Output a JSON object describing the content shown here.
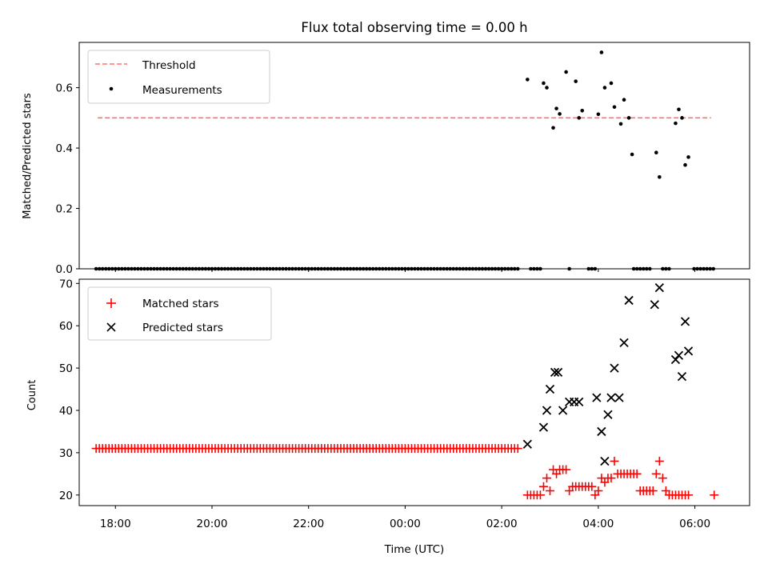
{
  "figure": {
    "title": "Flux total observing time = 0.00 h"
  },
  "chart_data": [
    {
      "type": "scatter",
      "ylabel": "Matched/Predicted stars",
      "ylim": [
        0,
        0.75
      ],
      "yticks": [
        0.0,
        0.2,
        0.4,
        0.6
      ],
      "ytick_labels": [
        "0.0",
        "0.2",
        "0.4",
        "0.6"
      ],
      "xlim": [
        "17:15",
        "07:08"
      ],
      "x_ticks": [
        "18:00",
        "20:00",
        "22:00",
        "00:00",
        "02:00",
        "04:00",
        "06:00"
      ],
      "x_tick_labels_visible": false,
      "grid": false,
      "legend_position": "upper left",
      "threshold": {
        "name": "Threshold",
        "value": 0.5,
        "x_start": "17:38",
        "x_end": "06:20",
        "color": "#ff7070",
        "style": "dashed"
      },
      "series": [
        {
          "name": "Measurements",
          "marker": "dot",
          "color": "#000000",
          "zero_points": {
            "x_start": "17:36",
            "x_end": "02:20",
            "step_minutes": 4,
            "y": 0,
            "extra_x": [
              "02:36",
              "02:40",
              "02:44",
              "02:48",
              "03:24",
              "03:48",
              "03:52",
              "03:56",
              "04:44",
              "04:48",
              "04:52",
              "04:56",
              "05:00",
              "05:04",
              "05:20",
              "05:24",
              "05:28",
              "05:59",
              "06:03",
              "06:07",
              "06:11",
              "06:15",
              "06:19",
              "06:23"
            ]
          },
          "points": [
            {
              "x": "02:32",
              "y": 0.627
            },
            {
              "x": "02:52",
              "y": 0.615
            },
            {
              "x": "02:56",
              "y": 0.6
            },
            {
              "x": "03:04",
              "y": 0.467
            },
            {
              "x": "03:08",
              "y": 0.531
            },
            {
              "x": "03:12",
              "y": 0.513
            },
            {
              "x": "03:20",
              "y": 0.652
            },
            {
              "x": "03:32",
              "y": 0.621
            },
            {
              "x": "03:36",
              "y": 0.5
            },
            {
              "x": "03:40",
              "y": 0.524
            },
            {
              "x": "04:00",
              "y": 0.512
            },
            {
              "x": "04:04",
              "y": 0.717
            },
            {
              "x": "04:08",
              "y": 0.6
            },
            {
              "x": "04:16",
              "y": 0.615
            },
            {
              "x": "04:20",
              "y": 0.536
            },
            {
              "x": "04:28",
              "y": 0.48
            },
            {
              "x": "04:32",
              "y": 0.56
            },
            {
              "x": "04:38",
              "y": 0.5
            },
            {
              "x": "04:42",
              "y": 0.379
            },
            {
              "x": "05:12",
              "y": 0.385
            },
            {
              "x": "05:16",
              "y": 0.304
            },
            {
              "x": "05:36",
              "y": 0.482
            },
            {
              "x": "05:40",
              "y": 0.528
            },
            {
              "x": "05:44",
              "y": 0.5
            },
            {
              "x": "05:48",
              "y": 0.344
            },
            {
              "x": "05:52",
              "y": 0.37
            }
          ]
        }
      ]
    },
    {
      "type": "scatter",
      "xlabel": "Time (UTC)",
      "ylabel": "Count",
      "ylim": [
        17.5,
        71
      ],
      "yticks": [
        20,
        30,
        40,
        50,
        60,
        70
      ],
      "ytick_labels": [
        "20",
        "30",
        "40",
        "50",
        "60",
        "70"
      ],
      "xlim": [
        "17:15",
        "07:08"
      ],
      "x_ticks": [
        "18:00",
        "20:00",
        "22:00",
        "00:00",
        "02:00",
        "04:00",
        "06:00"
      ],
      "x_tick_labels": [
        "18:00",
        "20:00",
        "22:00",
        "00:00",
        "02:00",
        "04:00",
        "06:00"
      ],
      "grid": false,
      "legend_position": "upper left",
      "series": [
        {
          "name": "Matched stars",
          "marker": "plus",
          "color": "#ff0000",
          "constant_points": {
            "x_start": "17:36",
            "x_end": "02:20",
            "step_minutes": 4,
            "y": 31
          },
          "points": [
            {
              "x": "02:32",
              "y": 20
            },
            {
              "x": "02:36",
              "y": 20
            },
            {
              "x": "02:40",
              "y": 20
            },
            {
              "x": "02:44",
              "y": 20
            },
            {
              "x": "02:48",
              "y": 20
            },
            {
              "x": "02:52",
              "y": 22
            },
            {
              "x": "02:56",
              "y": 24
            },
            {
              "x": "03:00",
              "y": 21
            },
            {
              "x": "03:04",
              "y": 26
            },
            {
              "x": "03:08",
              "y": 25
            },
            {
              "x": "03:12",
              "y": 26
            },
            {
              "x": "03:16",
              "y": 26
            },
            {
              "x": "03:20",
              "y": 26
            },
            {
              "x": "03:24",
              "y": 21
            },
            {
              "x": "03:28",
              "y": 22
            },
            {
              "x": "03:32",
              "y": 22
            },
            {
              "x": "03:36",
              "y": 22
            },
            {
              "x": "03:40",
              "y": 22
            },
            {
              "x": "03:44",
              "y": 22
            },
            {
              "x": "03:48",
              "y": 22
            },
            {
              "x": "03:52",
              "y": 22
            },
            {
              "x": "03:56",
              "y": 20
            },
            {
              "x": "04:00",
              "y": 21
            },
            {
              "x": "04:04",
              "y": 24
            },
            {
              "x": "04:08",
              "y": 23
            },
            {
              "x": "04:12",
              "y": 24
            },
            {
              "x": "04:16",
              "y": 24
            },
            {
              "x": "04:20",
              "y": 28
            },
            {
              "x": "04:24",
              "y": 25
            },
            {
              "x": "04:28",
              "y": 25
            },
            {
              "x": "04:32",
              "y": 25
            },
            {
              "x": "04:36",
              "y": 25
            },
            {
              "x": "04:40",
              "y": 25
            },
            {
              "x": "04:44",
              "y": 25
            },
            {
              "x": "04:48",
              "y": 25
            },
            {
              "x": "04:52",
              "y": 21
            },
            {
              "x": "04:56",
              "y": 21
            },
            {
              "x": "05:00",
              "y": 21
            },
            {
              "x": "05:04",
              "y": 21
            },
            {
              "x": "05:08",
              "y": 21
            },
            {
              "x": "05:12",
              "y": 25
            },
            {
              "x": "05:16",
              "y": 28
            },
            {
              "x": "05:20",
              "y": 24
            },
            {
              "x": "05:24",
              "y": 21
            },
            {
              "x": "05:28",
              "y": 20
            },
            {
              "x": "05:32",
              "y": 20
            },
            {
              "x": "05:36",
              "y": 20
            },
            {
              "x": "05:40",
              "y": 20
            },
            {
              "x": "05:44",
              "y": 20
            },
            {
              "x": "05:48",
              "y": 20
            },
            {
              "x": "05:52",
              "y": 20
            },
            {
              "x": "06:24",
              "y": 20
            }
          ]
        },
        {
          "name": "Predicted stars",
          "marker": "x",
          "color": "#000000",
          "points": [
            {
              "x": "02:32",
              "y": 32
            },
            {
              "x": "02:52",
              "y": 36
            },
            {
              "x": "02:56",
              "y": 40
            },
            {
              "x": "03:00",
              "y": 45
            },
            {
              "x": "03:06",
              "y": 49
            },
            {
              "x": "03:10",
              "y": 49
            },
            {
              "x": "03:16",
              "y": 40
            },
            {
              "x": "03:24",
              "y": 42
            },
            {
              "x": "03:30",
              "y": 42
            },
            {
              "x": "03:36",
              "y": 42
            },
            {
              "x": "03:58",
              "y": 43
            },
            {
              "x": "04:04",
              "y": 35
            },
            {
              "x": "04:08",
              "y": 28
            },
            {
              "x": "04:12",
              "y": 39
            },
            {
              "x": "04:16",
              "y": 43
            },
            {
              "x": "04:20",
              "y": 50
            },
            {
              "x": "04:26",
              "y": 43
            },
            {
              "x": "04:32",
              "y": 56
            },
            {
              "x": "04:38",
              "y": 66
            },
            {
              "x": "05:10",
              "y": 65
            },
            {
              "x": "05:16",
              "y": 69
            },
            {
              "x": "05:36",
              "y": 52
            },
            {
              "x": "05:40",
              "y": 53
            },
            {
              "x": "05:44",
              "y": 48
            },
            {
              "x": "05:48",
              "y": 61
            },
            {
              "x": "05:52",
              "y": 54
            }
          ]
        }
      ]
    }
  ]
}
